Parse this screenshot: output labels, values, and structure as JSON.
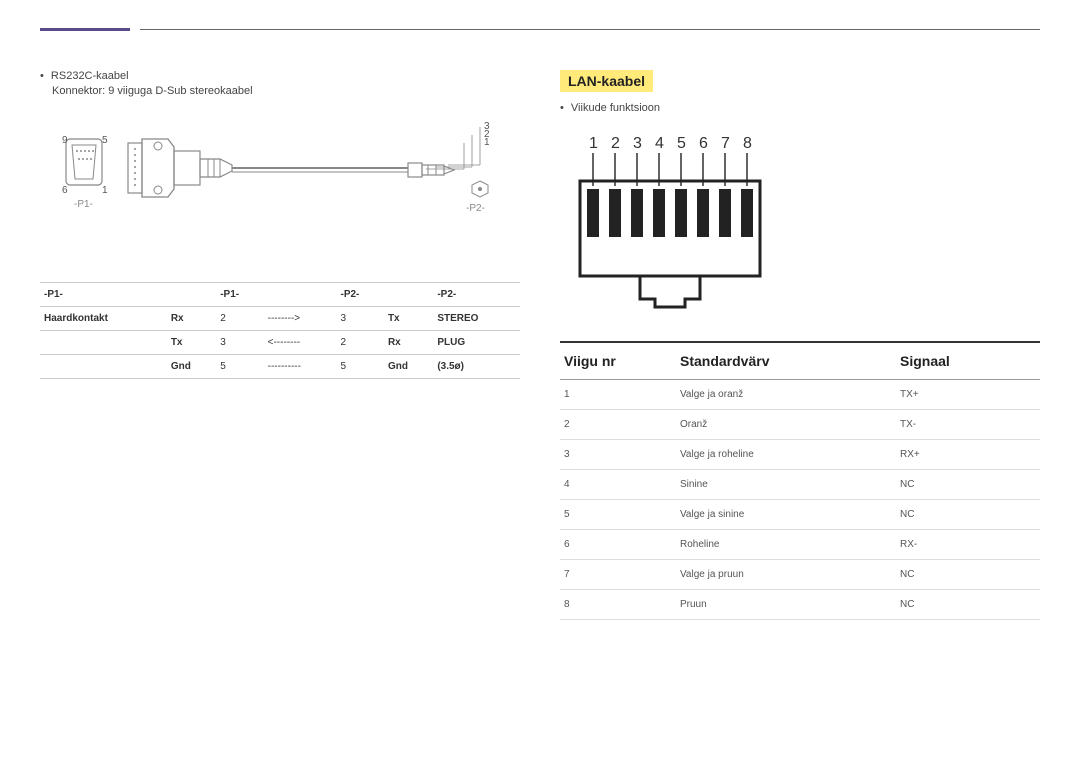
{
  "left": {
    "bullet": "RS232C-kaabel",
    "sub": "Konnektor: 9 viiguga D-Sub stereokaabel",
    "dsub_labels": {
      "tl": "9",
      "tr": "5",
      "bl": "6",
      "br": "1",
      "p1": "-P1-"
    },
    "jack_labels": {
      "l3": "3",
      "l2": "2",
      "l1": "1",
      "p2": "-P2-"
    },
    "table": {
      "headers": [
        "-P1-",
        "-P1-",
        "",
        "-P2-",
        "",
        "-P2-"
      ],
      "rows": [
        [
          "Haardkontakt",
          "Rx",
          "2",
          "-------->",
          "3",
          "Tx",
          "STEREO"
        ],
        [
          "",
          "Tx",
          "3",
          "<--------",
          "2",
          "Rx",
          "PLUG"
        ],
        [
          "",
          "Gnd",
          "5",
          "----------",
          "5",
          "Gnd",
          "(3.5ø)"
        ]
      ]
    }
  },
  "right": {
    "title": "LAN-kaabel",
    "bullet": "Viikude funktsioon",
    "pin_numbers": [
      "1",
      "2",
      "3",
      "4",
      "5",
      "6",
      "7",
      "8"
    ],
    "lan_headers": {
      "c1": "Viigu nr",
      "c2": "Standardvärv",
      "c3": "Signaal"
    },
    "lan_rows": [
      {
        "n": "1",
        "color": "Valge ja oranž",
        "sig": "TX+"
      },
      {
        "n": "2",
        "color": "Oranž",
        "sig": "TX-"
      },
      {
        "n": "3",
        "color": "Valge ja roheline",
        "sig": "RX+"
      },
      {
        "n": "4",
        "color": "Sinine",
        "sig": "NC"
      },
      {
        "n": "5",
        "color": "Valge ja sinine",
        "sig": "NC"
      },
      {
        "n": "6",
        "color": "Roheline",
        "sig": "RX-"
      },
      {
        "n": "7",
        "color": "Valge ja pruun",
        "sig": "NC"
      },
      {
        "n": "8",
        "color": "Pruun",
        "sig": "NC"
      }
    ]
  },
  "style": {
    "accent_color": "#5b4a8a",
    "highlight_bg": "#ffea7a",
    "text_color": "#444444",
    "border_color": "#cccccc"
  }
}
